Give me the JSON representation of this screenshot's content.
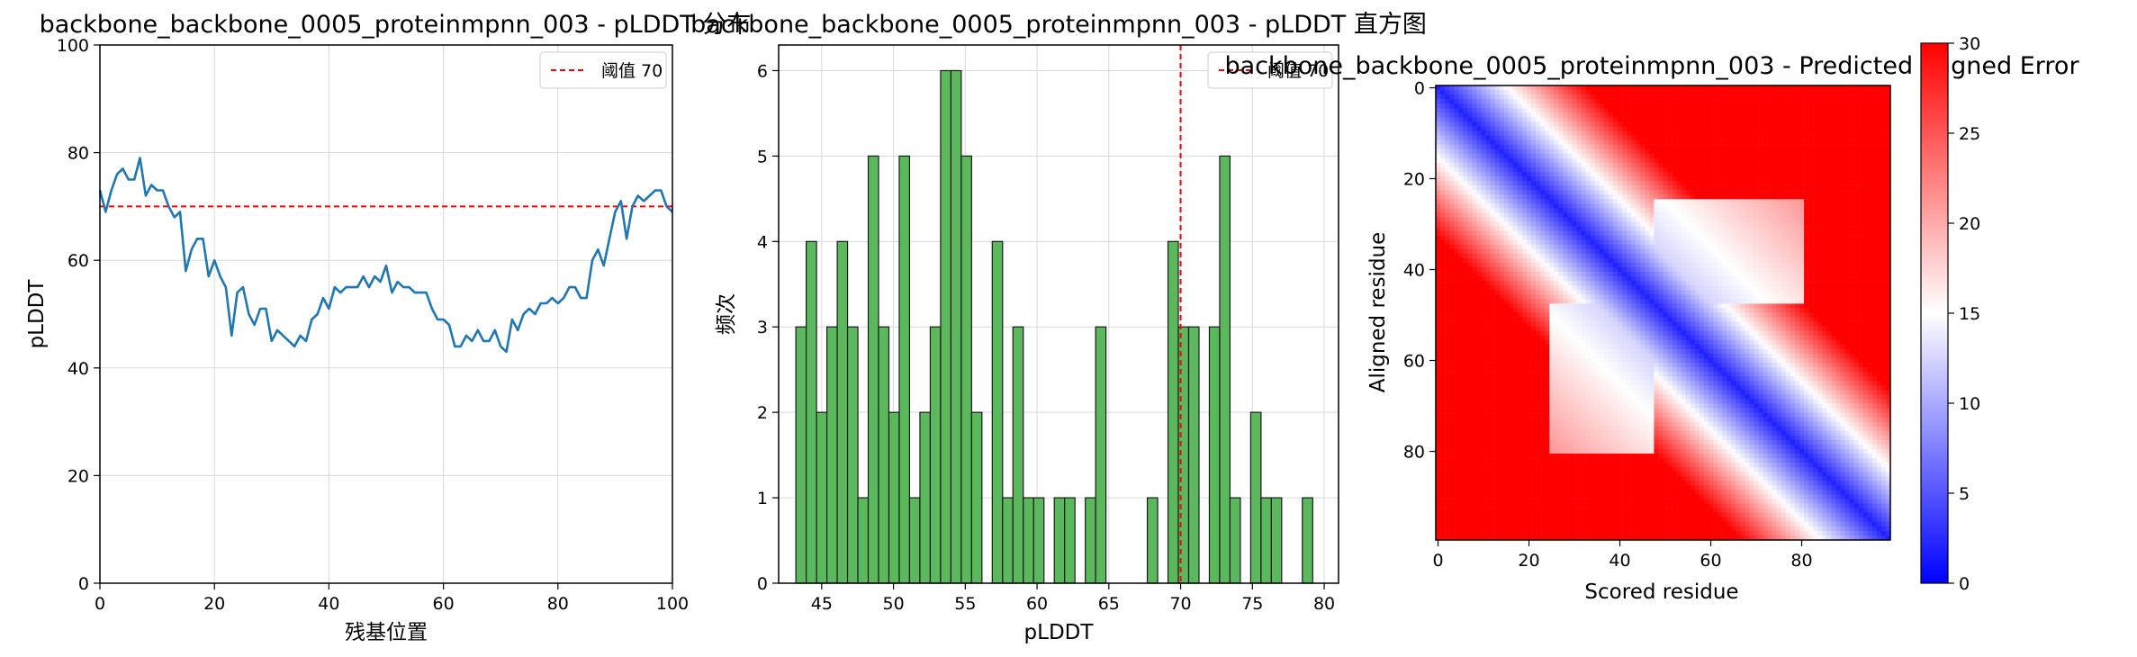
{
  "chart_data": [
    {
      "type": "line",
      "title": "backbone_backbone_0005_proteinmpnn_003 - pLDDT 分布",
      "xlabel": "残基位置",
      "ylabel": "pLDDT",
      "xlim": [
        0,
        100
      ],
      "ylim": [
        0,
        100
      ],
      "xticks": [
        "0",
        "20",
        "40",
        "60",
        "80",
        "100"
      ],
      "yticks": [
        "0",
        "20",
        "40",
        "60",
        "80",
        "100"
      ],
      "grid": true,
      "legend": "top-right",
      "threshold": {
        "label": "阈值 70",
        "value": 70,
        "color": "#ff0000"
      },
      "series": [
        {
          "color": "#1f77b4",
          "x": [
            0,
            1,
            2,
            3,
            4,
            5,
            6,
            7,
            8,
            9,
            10,
            11,
            12,
            13,
            14,
            15,
            16,
            17,
            18,
            19,
            20,
            21,
            22,
            23,
            24,
            25,
            26,
            27,
            28,
            29,
            30,
            31,
            32,
            33,
            34,
            35,
            36,
            37,
            38,
            39,
            40,
            41,
            42,
            43,
            44,
            45,
            46,
            47,
            48,
            49,
            50,
            51,
            52,
            53,
            54,
            55,
            56,
            57,
            58,
            59,
            60,
            61,
            62,
            63,
            64,
            65,
            66,
            67,
            68,
            69,
            70,
            71,
            72,
            73,
            74,
            75,
            76,
            77,
            78,
            79,
            80,
            81,
            82,
            83,
            84,
            85,
            86,
            87,
            88,
            89,
            90,
            91,
            92,
            93,
            94,
            95,
            96,
            97,
            98,
            99,
            100
          ],
          "y": [
            73,
            69,
            73,
            76,
            77,
            75,
            75,
            79,
            72,
            74,
            73,
            73,
            70,
            68,
            69,
            58,
            62,
            64,
            64,
            57,
            60,
            57,
            55,
            46,
            54,
            55,
            50,
            48,
            51,
            51,
            45,
            47,
            46,
            45,
            44,
            46,
            45,
            49,
            50,
            53,
            51,
            55,
            54,
            55,
            55,
            55,
            57,
            55,
            57,
            56,
            59,
            54,
            56,
            55,
            55,
            54,
            54,
            54,
            51,
            49,
            49,
            48,
            44,
            44,
            46,
            45,
            47,
            45,
            45,
            47,
            44,
            43,
            49,
            47,
            50,
            51,
            50,
            52,
            52,
            53,
            52,
            53,
            55,
            55,
            53,
            53,
            60,
            62,
            59,
            64,
            69,
            71,
            64,
            70,
            72,
            71,
            72,
            73,
            73,
            70,
            69
          ]
        }
      ]
    },
    {
      "type": "bar",
      "title": "backbone_backbone_0005_proteinmpnn_003 - pLDDT 直方图",
      "xlabel": "pLDDT",
      "ylabel": "频次",
      "xlim": [
        42,
        81
      ],
      "ylim": [
        0,
        6.3
      ],
      "xticks": [
        "45",
        "50",
        "55",
        "60",
        "65",
        "70",
        "75",
        "80"
      ],
      "yticks": [
        "0",
        "1",
        "2",
        "3",
        "4",
        "5",
        "6"
      ],
      "grid": true,
      "legend": "top-right",
      "threshold": {
        "label": "阈值 70",
        "value": 70,
        "color": "#ff0000"
      },
      "bar_color": "#5cb85c",
      "bin_edges_start": 43.2,
      "bin_width": 0.72,
      "values": [
        3,
        4,
        2,
        3,
        4,
        3,
        1,
        5,
        3,
        2,
        5,
        1,
        2,
        3,
        6,
        6,
        5,
        2,
        0,
        4,
        1,
        3,
        1,
        1,
        0,
        1,
        1,
        0,
        1,
        3,
        0,
        0,
        0,
        0,
        1,
        0,
        4,
        3,
        3,
        0,
        3,
        5,
        1,
        0,
        2,
        1,
        1,
        0,
        0,
        1
      ]
    },
    {
      "type": "heatmap",
      "title": "backbone_backbone_0005_proteinmpnn_003 - Predicted Aligned Error",
      "xlabel": "Scored residue",
      "ylabel": "Aligned residue",
      "size": 100,
      "xticks": [
        "0",
        "20",
        "40",
        "60",
        "80"
      ],
      "yticks": [
        "0",
        "20",
        "40",
        "60",
        "80"
      ],
      "colormap": "bwr",
      "colorbar_range": [
        0,
        30
      ],
      "colorbar_ticks": [
        "0",
        "5",
        "10",
        "15",
        "20",
        "25",
        "30"
      ]
    }
  ]
}
